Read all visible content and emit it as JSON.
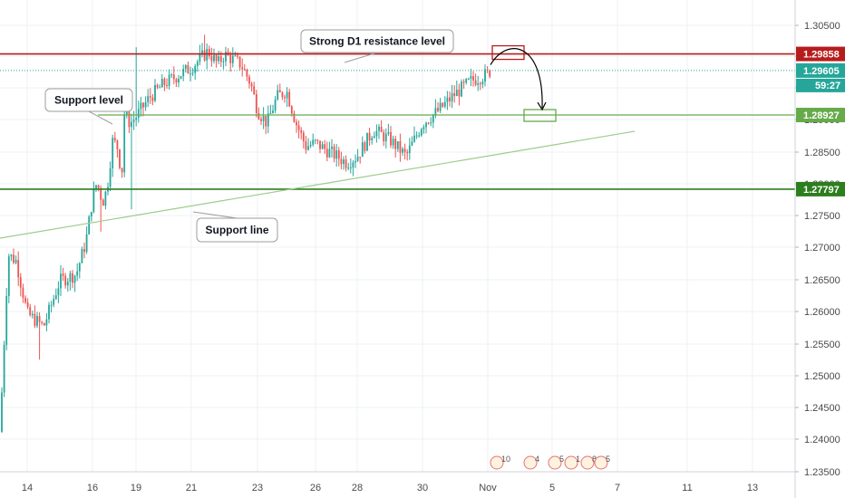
{
  "chart_data": {
    "type": "candlestick",
    "x_ticks": [
      "14",
      "16",
      "19",
      "21",
      "23",
      "26",
      "28",
      "30",
      "Nov",
      "5",
      "7",
      "11",
      "13"
    ],
    "y_ticks": [
      "1.30500",
      "1.30000",
      "1.29500",
      "1.29000",
      "1.28500",
      "1.28000",
      "1.27500",
      "1.27000",
      "1.26500",
      "1.26000",
      "1.25500",
      "1.25000",
      "1.24500",
      "1.24000",
      "1.23500"
    ],
    "ylim": [
      1.2349,
      1.3068
    ],
    "grid": true,
    "price_tags": [
      {
        "label": "1.29858",
        "value": 1.29858,
        "color": "#b71c1c"
      },
      {
        "label": "1.29605",
        "value": 1.29605,
        "color": "#26a69a"
      },
      {
        "label": "1.28927",
        "value": 1.28927,
        "color": "#66ab4a"
      },
      {
        "label": "1.27797",
        "value": 1.27797,
        "color": "#2e7d1f"
      }
    ],
    "countdown": "59:27",
    "horizontal_levels": [
      {
        "name": "resistance",
        "value": 1.29858,
        "color": "#b71c1c"
      },
      {
        "name": "support",
        "value": 1.28927,
        "color": "#66ab4a"
      },
      {
        "name": "lower-support",
        "value": 1.27797,
        "color": "#2e7d1f"
      }
    ],
    "trend_line": {
      "from": [
        "Oct 13",
        1.2705
      ],
      "to": [
        "Nov 8",
        1.2868
      ]
    },
    "annotations": [
      {
        "name": "resistance-callout",
        "text": "Strong D1 resistance level"
      },
      {
        "name": "support-level-callout",
        "text": "Support level"
      },
      {
        "name": "support-line-callout",
        "text": "Support line"
      }
    ],
    "event_markers": [
      "10",
      "4",
      "5",
      "1",
      "8",
      "5"
    ],
    "colors": {
      "up": "#26a69a",
      "down": "#ef5350",
      "grid": "#eef0f3"
    },
    "anchors": [
      [
        "Oct 13",
        1.241
      ],
      [
        "Oct 13.3",
        1.268
      ],
      [
        "Oct 13.6",
        1.267
      ],
      [
        "Oct 14",
        1.259
      ],
      [
        "Oct 14.5",
        1.257
      ],
      [
        "Oct 15",
        1.264
      ],
      [
        "Oct 15.5",
        1.265
      ],
      [
        "Oct 15.8",
        1.27
      ],
      [
        "Oct 16",
        1.2765
      ],
      [
        "Oct 16.3",
        1.279
      ],
      [
        "Oct 16.7",
        1.276
      ],
      [
        "Oct 17",
        1.278
      ],
      [
        "Oct 17.4",
        1.2855
      ],
      [
        "Oct 17.8",
        1.284
      ],
      [
        "Oct 18",
        1.279
      ],
      [
        "Oct 18.2",
        1.2895
      ],
      [
        "Oct 18.6",
        1.288
      ],
      [
        "Oct 19",
        1.289
      ],
      [
        "Oct 19.5",
        1.292
      ],
      [
        "Oct 20",
        1.294
      ],
      [
        "Oct 21",
        1.2965
      ],
      [
        "Oct 21.5",
        1.299
      ],
      [
        "Oct 21.8",
        1.297
      ],
      [
        "Oct 22",
        1.2985
      ],
      [
        "Oct 22.5",
        1.297
      ],
      [
        "Oct 22.8",
        1.294
      ],
      [
        "Oct 23",
        1.29
      ],
      [
        "Oct 23.5",
        1.288
      ],
      [
        "Oct 24",
        1.292
      ],
      [
        "Oct 24.5",
        1.293
      ],
      [
        "Oct 25",
        1.288
      ],
      [
        "Oct 25.5",
        1.2845
      ],
      [
        "Oct 26",
        1.285
      ],
      [
        "Oct 27",
        1.283
      ],
      [
        "Oct 27.5",
        1.282
      ],
      [
        "Oct 28",
        1.283
      ],
      [
        "Oct 28.5",
        1.287
      ],
      [
        "Oct 29",
        1.2855
      ],
      [
        "Oct 29.5",
        1.283
      ],
      [
        "Oct 30",
        1.288
      ],
      [
        "Oct 30.5",
        1.29
      ],
      [
        "Oct 31",
        1.2925
      ],
      [
        "Oct 31.5",
        1.2945
      ],
      [
        "Nov 1",
        1.2955
      ],
      [
        "Nov 1.2",
        1.2962
      ]
    ]
  },
  "projection": {
    "from_box": 1.29858,
    "to_box": 1.28927
  }
}
